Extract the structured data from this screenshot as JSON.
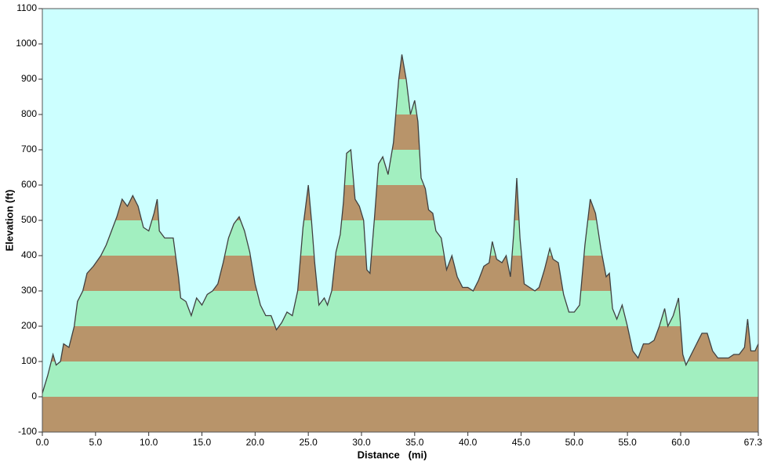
{
  "chart_data": {
    "type": "area",
    "x_label": "Distance   (mi)",
    "y_label": "Elevation (ft)",
    "plot_background": "#ccffff",
    "band_colors": [
      "#b8946a",
      "#a2efc0"
    ],
    "xlim": [
      0,
      67.3
    ],
    "xticks": [
      {
        "value": 0,
        "label": "0.0"
      },
      {
        "value": 5,
        "label": "5.0"
      },
      {
        "value": 10,
        "label": "10.0"
      },
      {
        "value": 15,
        "label": "15.0"
      },
      {
        "value": 20,
        "label": "20.0"
      },
      {
        "value": 25,
        "label": "25.0"
      },
      {
        "value": 30,
        "label": "30.0"
      },
      {
        "value": 35,
        "label": "35.0"
      },
      {
        "value": 40,
        "label": "40.0"
      },
      {
        "value": 45,
        "label": "45.0"
      },
      {
        "value": 50,
        "label": "50.0"
      },
      {
        "value": 55,
        "label": "55.0"
      },
      {
        "value": 60,
        "label": "60.0"
      },
      {
        "value": 67.3,
        "label": "67.3"
      }
    ],
    "ylim": [
      -100,
      1100
    ],
    "yticks": [
      -100,
      0,
      100,
      200,
      300,
      400,
      500,
      600,
      700,
      800,
      900,
      1000,
      1100
    ],
    "x": [
      0,
      0.5,
      1,
      1.3,
      1.7,
      2,
      2.5,
      3,
      3.3,
      3.8,
      4.2,
      4.8,
      5.5,
      6,
      6.5,
      7,
      7.5,
      8,
      8.5,
      9,
      9.5,
      10,
      10.5,
      10.8,
      11,
      11.5,
      12.3,
      12.8,
      13,
      13.5,
      14,
      14.5,
      15,
      15.5,
      16,
      16.5,
      17,
      17.5,
      18,
      18.5,
      19,
      19.5,
      20,
      20.5,
      21,
      21.5,
      22,
      22.5,
      23,
      23.5,
      24,
      24.5,
      25,
      25.3,
      25.6,
      26,
      26.5,
      26.8,
      27.2,
      27.6,
      28,
      28.3,
      28.6,
      29,
      29.4,
      29.8,
      30.2,
      30.5,
      30.8,
      31.2,
      31.6,
      32,
      32.5,
      33,
      33.5,
      33.8,
      34.2,
      34.6,
      35,
      35.3,
      35.6,
      36,
      36.3,
      36.7,
      37,
      37.5,
      38,
      38.5,
      39,
      39.5,
      40,
      40.5,
      41,
      41.5,
      42,
      42.3,
      42.7,
      43.2,
      43.6,
      44,
      44.3,
      44.6,
      44.9,
      45.3,
      45.8,
      46.3,
      46.7,
      47.2,
      47.7,
      48,
      48.5,
      49,
      49.5,
      50,
      50.5,
      51,
      51.5,
      52,
      52.5,
      53,
      53.3,
      53.6,
      54,
      54.5,
      55,
      55.5,
      56,
      56.5,
      57,
      57.5,
      58,
      58.5,
      58.8,
      59.3,
      59.8,
      60.2,
      60.5,
      61,
      61.5,
      62,
      62.5,
      63,
      63.5,
      64,
      64.5,
      65,
      65.5,
      66,
      66.3,
      66.6,
      67,
      67.3
    ],
    "series": [
      {
        "color": "#404040",
        "values": [
          10,
          60,
          120,
          90,
          100,
          150,
          140,
          200,
          270,
          300,
          350,
          370,
          400,
          430,
          470,
          510,
          560,
          540,
          570,
          540,
          480,
          470,
          520,
          560,
          470,
          450,
          450,
          340,
          280,
          270,
          230,
          280,
          260,
          290,
          300,
          320,
          380,
          450,
          490,
          510,
          470,
          410,
          320,
          260,
          230,
          230,
          190,
          210,
          240,
          230,
          300,
          480,
          600,
          500,
          380,
          260,
          280,
          260,
          300,
          410,
          460,
          550,
          690,
          700,
          560,
          540,
          500,
          360,
          350,
          500,
          660,
          680,
          630,
          720,
          900,
          970,
          900,
          800,
          840,
          780,
          620,
          590,
          530,
          520,
          470,
          450,
          360,
          400,
          340,
          310,
          310,
          300,
          330,
          370,
          380,
          440,
          390,
          380,
          400,
          340,
          460,
          620,
          450,
          320,
          310,
          300,
          310,
          360,
          420,
          390,
          380,
          290,
          240,
          240,
          260,
          430,
          560,
          520,
          420,
          340,
          350,
          250,
          220,
          260,
          200,
          130,
          110,
          150,
          150,
          160,
          200,
          250,
          200,
          230,
          280,
          120,
          90,
          120,
          150,
          180,
          180,
          130,
          110,
          110,
          110,
          120,
          120,
          140,
          220,
          130,
          130,
          150
        ]
      }
    ]
  }
}
